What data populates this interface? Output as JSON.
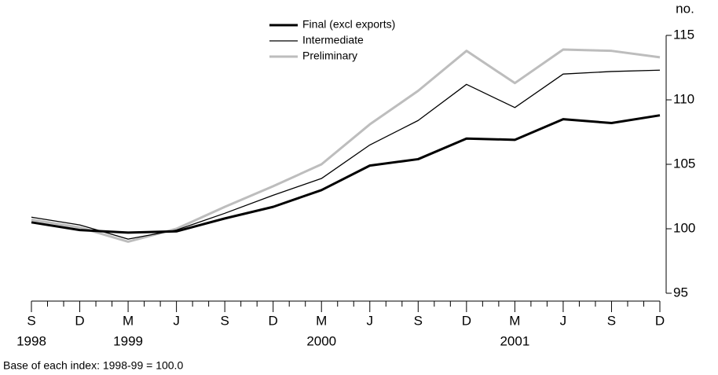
{
  "chart_data": {
    "type": "line",
    "y_label": "no.",
    "categories": [
      "S",
      "D",
      "M",
      "J",
      "S",
      "D",
      "M",
      "J",
      "S",
      "D",
      "M",
      "J",
      "S",
      "D"
    ],
    "year_labels": [
      "1998",
      null,
      "1999",
      null,
      null,
      null,
      "2000",
      null,
      null,
      null,
      "2001",
      null,
      null,
      null
    ],
    "series": [
      {
        "name": "Final (excl exports)",
        "color": "#000000",
        "values": [
          100.5,
          99.9,
          99.7,
          99.8,
          100.8,
          101.7,
          103.0,
          104.9,
          105.4,
          107.0,
          106.9,
          108.5,
          108.2,
          108.8
        ]
      },
      {
        "name": "Intermediate",
        "color": "#000000",
        "values": [
          100.9,
          100.3,
          99.2,
          99.9,
          101.2,
          102.6,
          103.9,
          106.5,
          108.4,
          111.2,
          109.4,
          112.0,
          112.2,
          112.3
        ]
      },
      {
        "name": "Preliminary",
        "color": "#bdbdbd",
        "values": [
          100.7,
          100.1,
          99.0,
          100.0,
          101.7,
          103.3,
          105.0,
          108.1,
          110.7,
          113.8,
          111.3,
          113.9,
          113.8,
          113.3
        ]
      }
    ],
    "ylim": [
      95,
      115
    ],
    "yticks": [
      95,
      100,
      105,
      110,
      115
    ],
    "y_axis_side": "right",
    "legend": "top-center",
    "grid": false
  },
  "footnote": "Base of each index: 1998-99 = 100.0"
}
